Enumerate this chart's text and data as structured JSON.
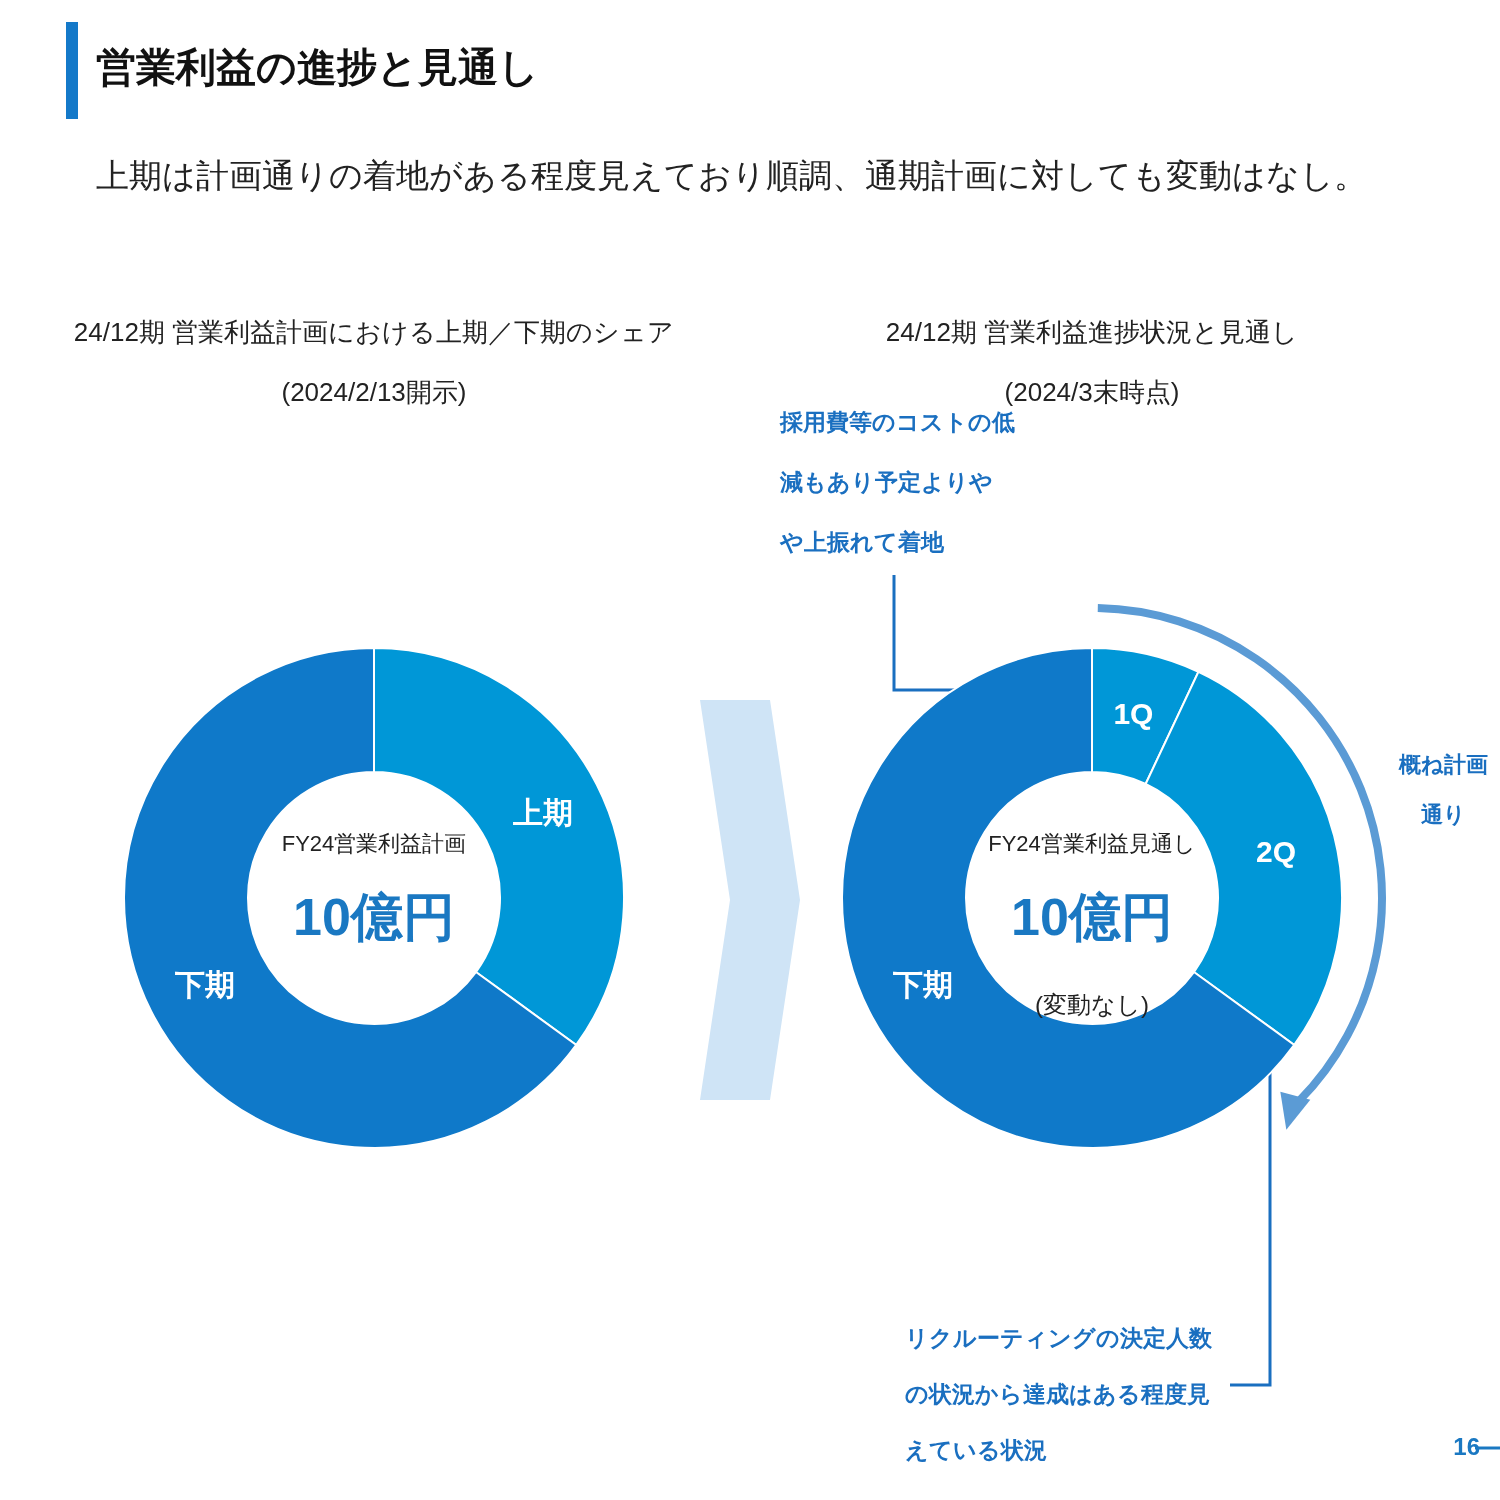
{
  "chart_data": [
    {
      "type": "donut",
      "title": "24/12期 営業利益計画における上期／下期のシェア",
      "subtitle": "(2024/2/13開示)",
      "categories": [
        "上期",
        "下期"
      ],
      "values": [
        35,
        65
      ],
      "colors": [
        "#0097d7",
        "#0f79c9"
      ],
      "annotations": [
        "営業利益の進捗と見通し",
        "上期は計画通りの着地がある程度見えており順調、通期計画に対しても変動はなし。",
        "FY24営業利益計画",
        "10億円",
        "16"
      ]
    },
    {
      "type": "donut",
      "title": "24/12期 営業利益進捗状況と見通し",
      "subtitle": "(2024/3末時点)",
      "categories": [
        "1Q",
        "2Q",
        "下期"
      ],
      "values": [
        7,
        28,
        65
      ],
      "colors": [
        "#0097d7",
        "#0097d7",
        "#0f79c9"
      ],
      "annotations": [
        "FY24営業利益見通し",
        "10億円",
        "(変動なし)",
        "採用費等のコストの低減もあり予定よりやや上振れて着地",
        "概ね計画通り",
        "リクルーティングの決定人数の状況から達成はある程度見えている状況"
      ]
    }
  ]
}
